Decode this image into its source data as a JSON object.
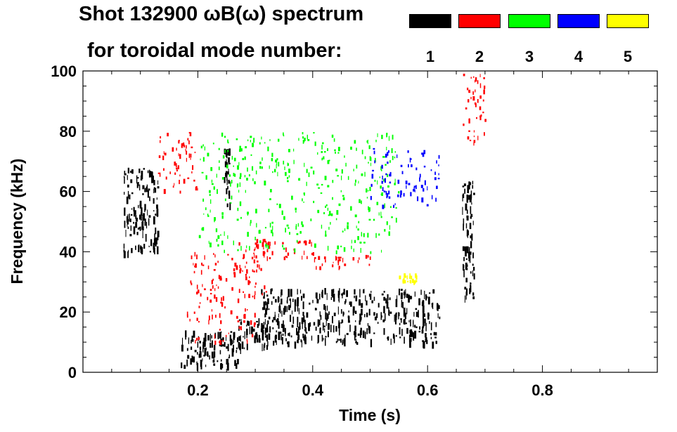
{
  "title": {
    "line1": "Shot 132900 ωB(ω) spectrum",
    "line2": "for toroidal mode number:"
  },
  "legend": [
    {
      "label": "1",
      "color": "#000000"
    },
    {
      "label": "2",
      "color": "#ff0000"
    },
    {
      "label": "3",
      "color": "#00ff00"
    },
    {
      "label": "4",
      "color": "#0000ff"
    },
    {
      "label": "5",
      "color": "#ffff00"
    }
  ],
  "chart_data": {
    "type": "heatmap",
    "xlabel": "Time (s)",
    "ylabel": "Frequency (kHz)",
    "xlim": [
      0.0,
      1.0
    ],
    "ylim": [
      0,
      100
    ],
    "x_ticks": [
      {
        "value": 0.2,
        "label": "0.2"
      },
      {
        "value": 0.4,
        "label": "0.4"
      },
      {
        "value": 0.6,
        "label": "0.6"
      },
      {
        "value": 0.8,
        "label": "0.8"
      }
    ],
    "y_ticks": [
      {
        "value": 0,
        "label": "0"
      },
      {
        "value": 20,
        "label": "20"
      },
      {
        "value": 40,
        "label": "40"
      },
      {
        "value": 60,
        "label": "60"
      },
      {
        "value": 80,
        "label": "80"
      },
      {
        "value": 100,
        "label": "100"
      }
    ],
    "mode_colors": {
      "1": "#000000",
      "2": "#ff0000",
      "3": "#00ff00",
      "4": "#0000ff",
      "5": "#ffff00"
    },
    "features": [
      {
        "mode": 1,
        "t": [
          0.07,
          0.13
        ],
        "f": [
          40,
          68
        ]
      },
      {
        "mode": 1,
        "t": [
          0.17,
          0.27
        ],
        "f": [
          2,
          14
        ]
      },
      {
        "mode": 1,
        "t": [
          0.27,
          0.32
        ],
        "f": [
          8,
          18
        ]
      },
      {
        "mode": 1,
        "t": [
          0.31,
          0.62
        ],
        "f": [
          10,
          28
        ]
      },
      {
        "mode": 1,
        "t": [
          0.245,
          0.255
        ],
        "f": [
          55,
          75
        ]
      },
      {
        "mode": 1,
        "t": [
          0.66,
          0.68
        ],
        "f": [
          25,
          65
        ]
      },
      {
        "mode": 2,
        "t": [
          0.13,
          0.2
        ],
        "f": [
          60,
          80
        ]
      },
      {
        "mode": 2,
        "t": [
          0.18,
          0.3
        ],
        "f": [
          10,
          40
        ]
      },
      {
        "mode": 2,
        "t": [
          0.27,
          0.32
        ],
        "f": [
          25,
          45
        ]
      },
      {
        "mode": 2,
        "t": [
          0.31,
          0.4
        ],
        "f": [
          38,
          44
        ]
      },
      {
        "mode": 2,
        "t": [
          0.4,
          0.5
        ],
        "f": [
          35,
          39
        ]
      },
      {
        "mode": 2,
        "t": [
          0.66,
          0.7
        ],
        "f": [
          75,
          100
        ]
      },
      {
        "mode": 3,
        "t": [
          0.2,
          0.55
        ],
        "f": [
          40,
          80
        ]
      },
      {
        "mode": 4,
        "t": [
          0.5,
          0.62
        ],
        "f": [
          55,
          75
        ]
      },
      {
        "mode": 5,
        "t": [
          0.55,
          0.58
        ],
        "f": [
          30,
          33
        ]
      }
    ]
  }
}
